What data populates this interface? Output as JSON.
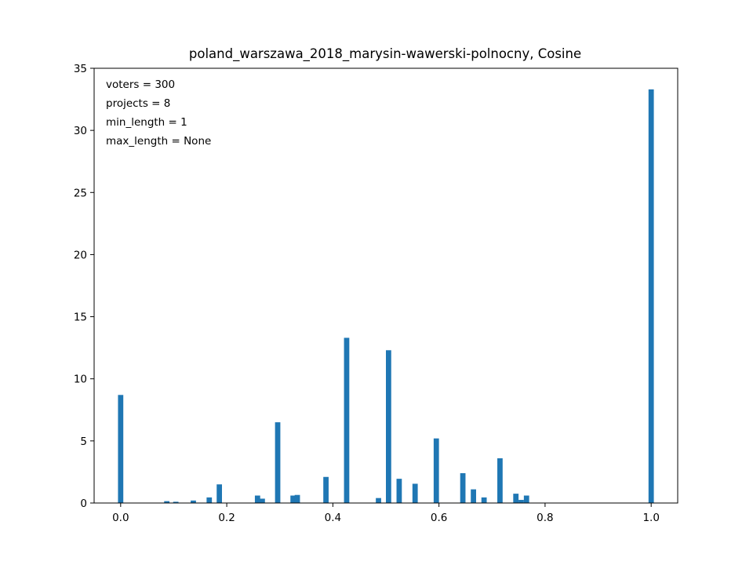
{
  "chart_data": {
    "type": "bar",
    "title": "poland_warszawa_2018_marysin-wawerski-polnocny, Cosine",
    "xlabel": "",
    "ylabel": "",
    "xlim": [
      -0.05,
      1.05
    ],
    "ylim": [
      0,
      35
    ],
    "xticks": [
      "0.0",
      "0.2",
      "0.4",
      "0.6",
      "0.8",
      "1.0"
    ],
    "yticks": [
      "0",
      "5",
      "10",
      "15",
      "20",
      "25",
      "30",
      "35"
    ],
    "bar_width": 0.01,
    "color": "#1f77b4",
    "grid": false,
    "annotations": [
      "voters = 300",
      "projects = 8",
      "min_length = 1",
      "max_length = None"
    ],
    "x": [
      0.0,
      0.087,
      0.104,
      0.137,
      0.167,
      0.186,
      0.258,
      0.267,
      0.296,
      0.325,
      0.333,
      0.387,
      0.426,
      0.486,
      0.505,
      0.525,
      0.555,
      0.595,
      0.645,
      0.665,
      0.685,
      0.715,
      0.745,
      0.755,
      0.765,
      1.0
    ],
    "values": [
      8.7,
      0.15,
      0.1,
      0.2,
      0.45,
      1.5,
      0.6,
      0.35,
      6.5,
      0.6,
      0.65,
      2.1,
      13.3,
      0.4,
      12.3,
      1.95,
      1.55,
      5.2,
      2.4,
      1.1,
      0.45,
      3.6,
      0.75,
      0.25,
      0.6,
      33.3
    ]
  }
}
